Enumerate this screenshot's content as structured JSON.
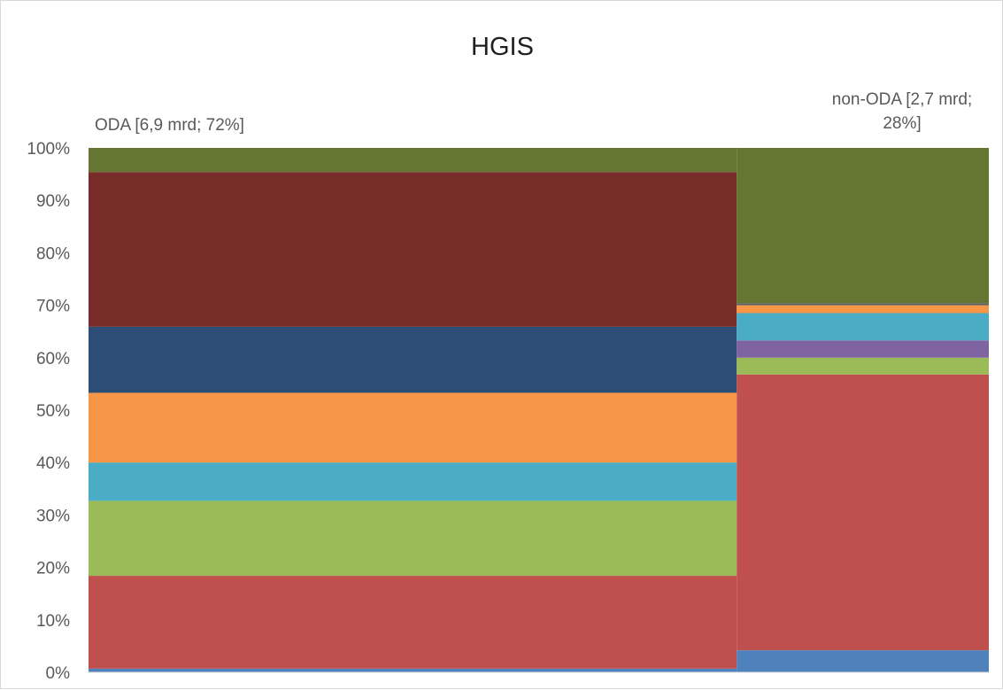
{
  "chart_data": {
    "type": "bar",
    "subtype": "marimekko (100% stacked, variable-width columns)",
    "title": "HGIS",
    "xlabel": "",
    "ylabel": "",
    "ylim": [
      0,
      100
    ],
    "y_ticks": [
      "0%",
      "10%",
      "20%",
      "30%",
      "40%",
      "50%",
      "60%",
      "70%",
      "80%",
      "90%",
      "100%"
    ],
    "grid": false,
    "legend": "none",
    "categories": [
      "ODA [6,9 mrd; 72%]",
      "non-ODA [2,7 mrd; 28%]"
    ],
    "column_labels": {
      "oda": "ODA [6,9 mrd; 72%]",
      "non_oda_line1": "non-ODA [2,7 mrd;",
      "non_oda_line2": "28%]"
    },
    "column_shares": [
      72,
      28
    ],
    "series": [
      {
        "color": "#4f81bd",
        "values": [
          0.7,
          4.2
        ]
      },
      {
        "color": "#c0504d",
        "values": [
          17.7,
          52.6
        ]
      },
      {
        "color": "#9bbb59",
        "values": [
          14.3,
          3.2
        ]
      },
      {
        "color": "#4bacc6",
        "values": [
          7.3,
          0
        ]
      },
      {
        "color": "#8064a2",
        "values": [
          0,
          3.3
        ]
      },
      {
        "color": "#4bacc6",
        "values": [
          0,
          5.2
        ]
      },
      {
        "color": "#f79646",
        "values": [
          13.3,
          1.5
        ]
      },
      {
        "color": "#2c4d75",
        "values": [
          12.6,
          0
        ]
      },
      {
        "color": "#772c2a",
        "values": [
          29.5,
          0
        ]
      },
      {
        "color": "#5f5f5f",
        "values": [
          0,
          0.4
        ]
      },
      {
        "color": "#647631",
        "values": [
          4.6,
          29.6
        ]
      }
    ]
  }
}
